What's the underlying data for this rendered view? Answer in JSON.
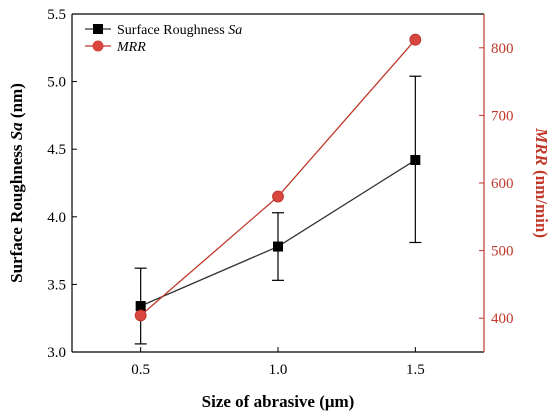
{
  "chart_data": {
    "type": "line",
    "x": [
      0.5,
      1.0,
      1.5
    ],
    "xlabel": "Size of abrasive (μm)",
    "x_ticks": [
      "0.5",
      "1.0",
      "1.5"
    ],
    "xlim": [
      0.25,
      1.75
    ],
    "y_left": {
      "label_prefix": "Surface Roughness ",
      "label_italic": "Sa",
      "label_suffix": " (nm)",
      "lim": [
        3.0,
        5.5
      ],
      "ticks": [
        "3.0",
        "3.5",
        "4.0",
        "4.5",
        "5.0",
        "5.5"
      ],
      "color": "#000000"
    },
    "y_right": {
      "label_italic": "MRR",
      "label_suffix": " (nm/min)",
      "lim": [
        350,
        850
      ],
      "ticks": [
        "400",
        "500",
        "600",
        "700",
        "800"
      ],
      "color": "#c0392b"
    },
    "series": [
      {
        "name_prefix": "Surface Roughness ",
        "name_italic": "Sa",
        "axis": "left",
        "marker": "square",
        "color": "#000000",
        "line_color": "#333333",
        "values": [
          3.34,
          3.78,
          4.42
        ],
        "error_low": [
          3.06,
          3.53,
          3.81
        ],
        "error_high": [
          3.62,
          4.03,
          5.04
        ]
      },
      {
        "name_italic": "MRR",
        "axis": "right",
        "marker": "circle",
        "color": "#d9463e",
        "line_color": "#c0392b",
        "values": [
          404,
          580,
          812
        ]
      }
    ],
    "legend_position": "top-left",
    "grid": false
  }
}
